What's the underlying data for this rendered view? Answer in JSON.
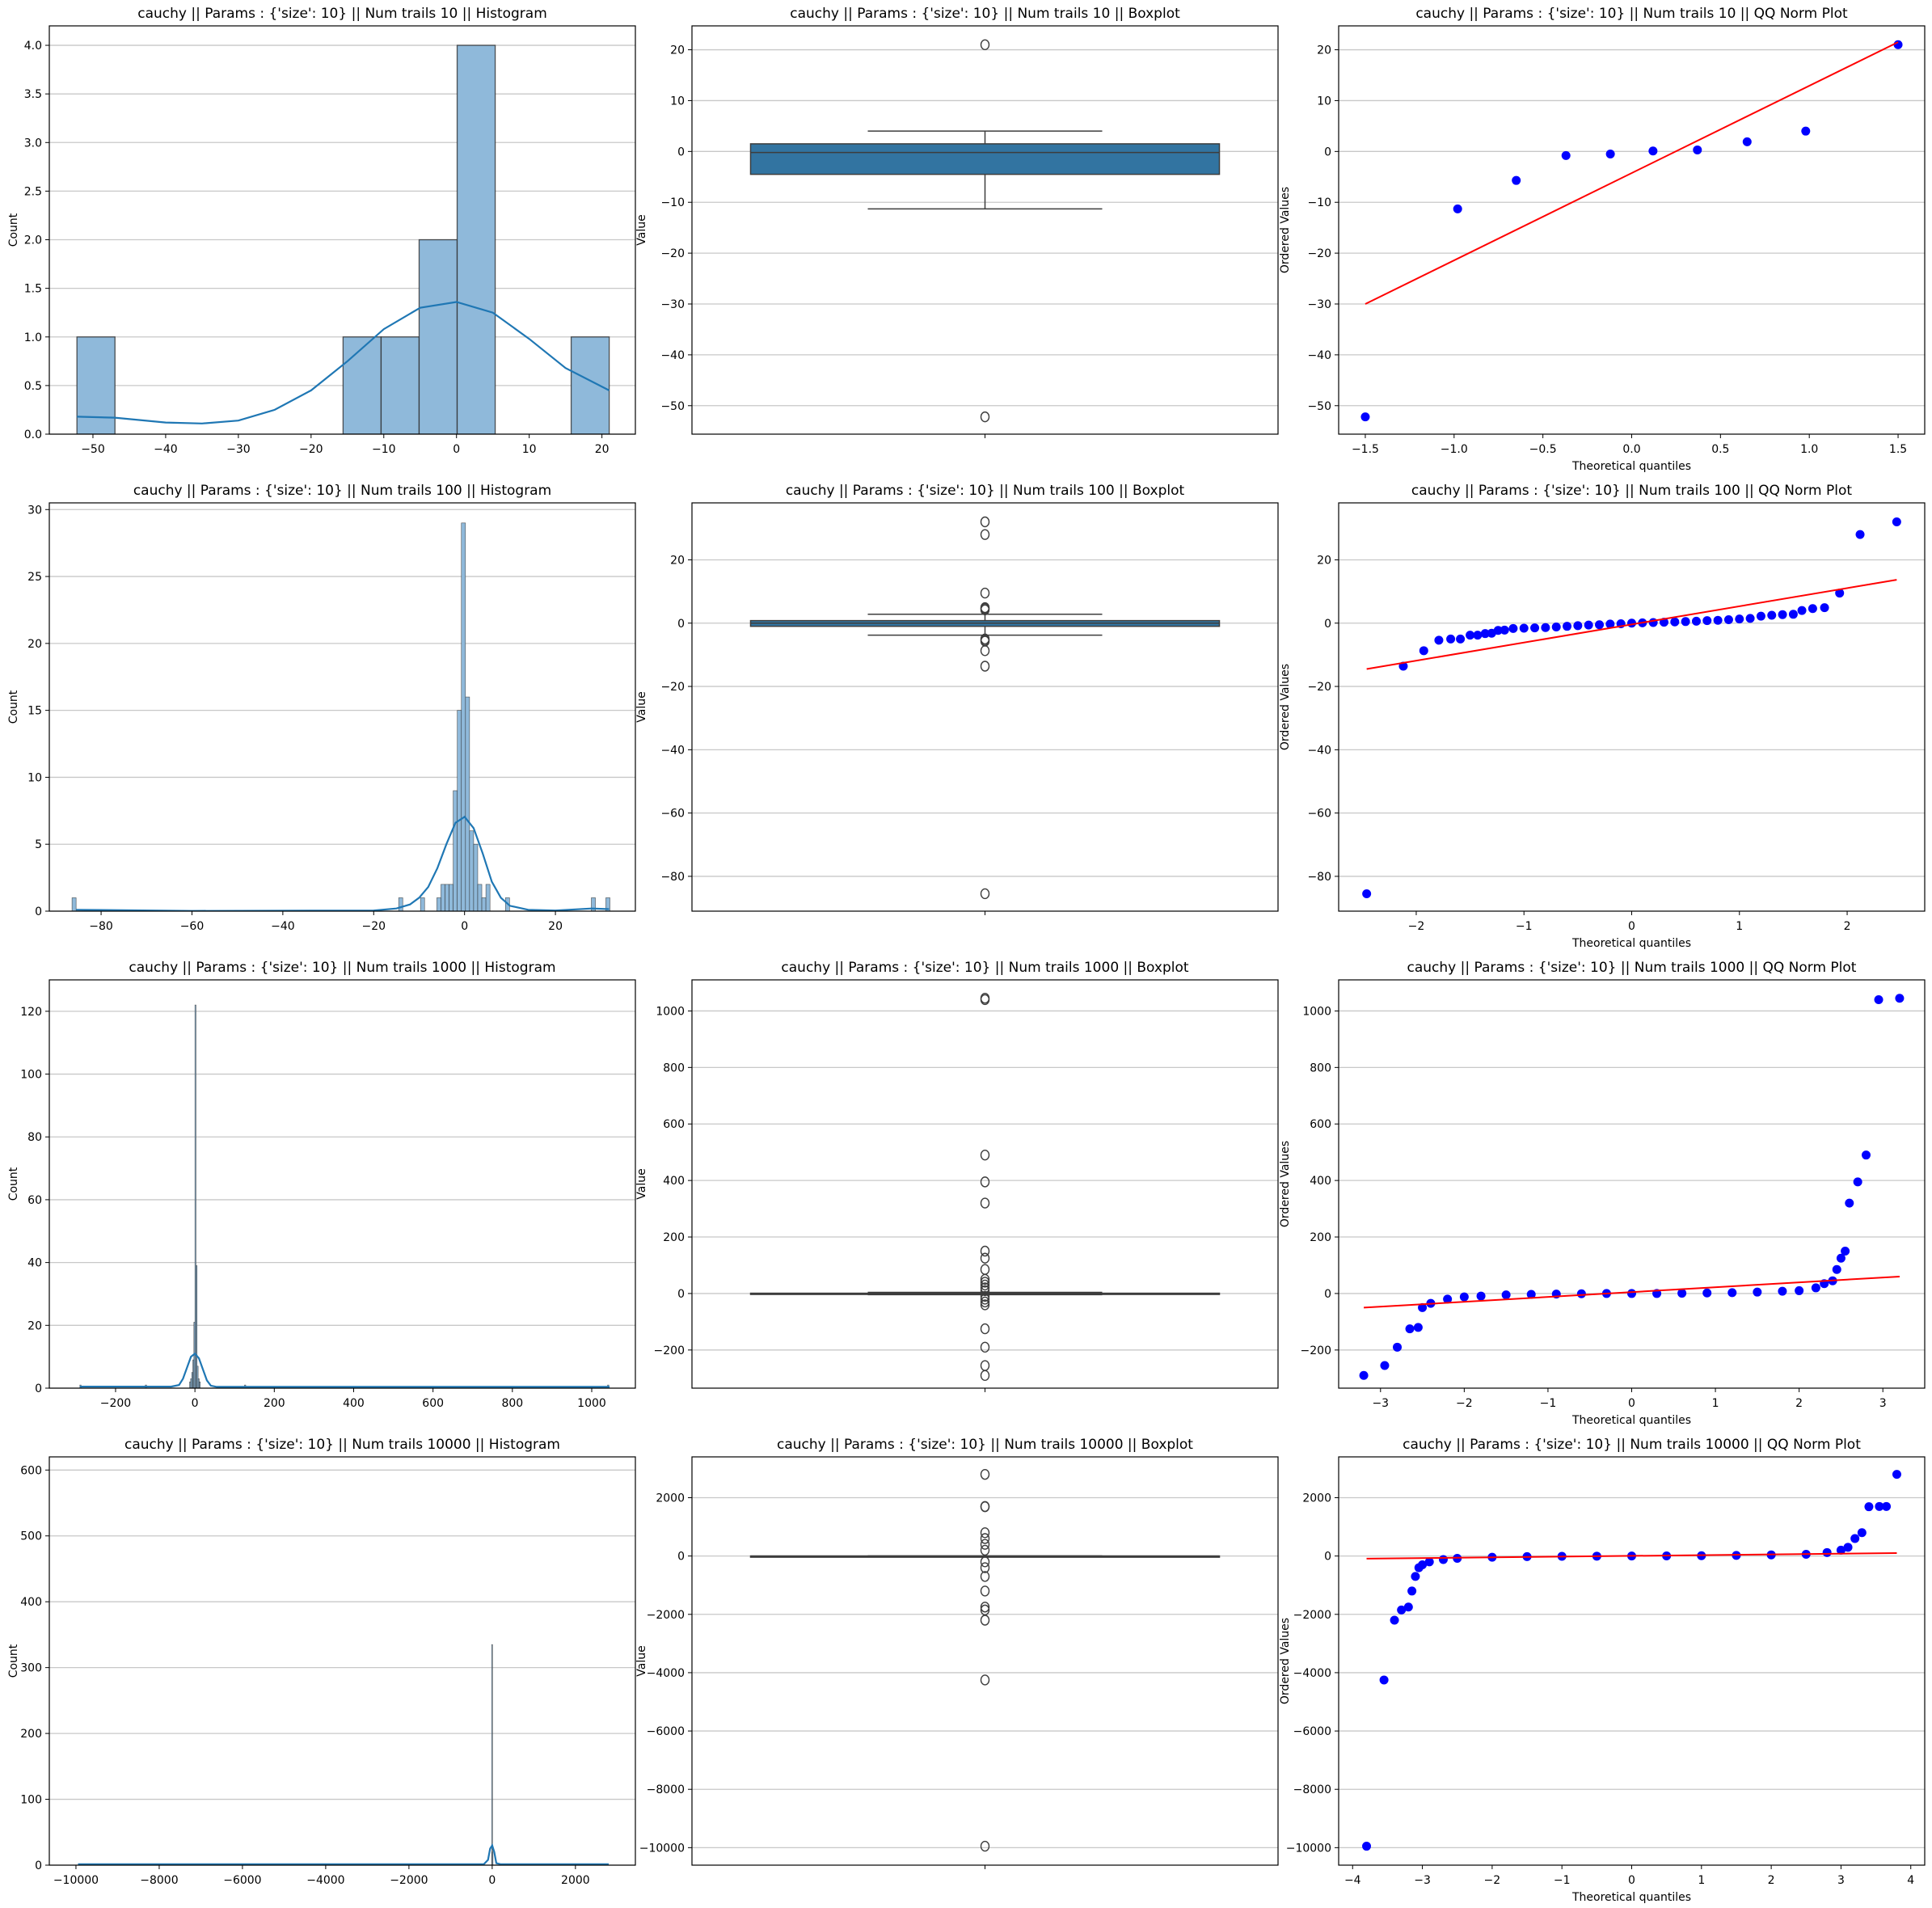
{
  "colors": {
    "hist_fill": "#8fb9da",
    "hist_edge": "#2b2b2b",
    "kde": "#1f77b4",
    "box_fill": "#3274a1",
    "box_edge": "#3d3d3d",
    "qq_point": "#0000ff",
    "qq_line": "#ff0000",
    "grid": "#c8c8c8"
  },
  "chart_data": [
    {
      "type": "histogram",
      "title": "cauchy || Params : {'size': 10} || Num trails 10 || Histogram",
      "xlabel": "",
      "ylabel": "Count",
      "xlim": [
        -56,
        24.6
      ],
      "ylim": [
        0,
        4.2
      ],
      "xticks": [
        "-50",
        "-40",
        "-30",
        "-20",
        "-10",
        "0",
        "10",
        "20"
      ],
      "yticks": [
        "0.0",
        "0.5",
        "1.0",
        "1.5",
        "2.0",
        "2.5",
        "3.0",
        "3.5",
        "4.0"
      ],
      "bins": [
        [
          -52.2,
          -46.97,
          1
        ],
        [
          -15.6,
          -10.37,
          1
        ],
        [
          -10.37,
          -5.14,
          1
        ],
        [
          -5.14,
          0.09,
          2
        ],
        [
          0.09,
          5.32,
          4
        ],
        [
          15.77,
          21.0,
          1
        ]
      ],
      "kde": [
        [
          -52.2,
          0.18
        ],
        [
          -47,
          0.17
        ],
        [
          -40,
          0.12
        ],
        [
          -35,
          0.11
        ],
        [
          -30,
          0.14
        ],
        [
          -25,
          0.25
        ],
        [
          -20,
          0.45
        ],
        [
          -15,
          0.75
        ],
        [
          -10,
          1.08
        ],
        [
          -5,
          1.3
        ],
        [
          0,
          1.36
        ],
        [
          5,
          1.25
        ],
        [
          10,
          0.98
        ],
        [
          15,
          0.68
        ],
        [
          21,
          0.45
        ]
      ]
    },
    {
      "type": "boxplot",
      "title": "cauchy || Params : {'size': 10} || Num trails 10 || Boxplot",
      "xlabel": "",
      "ylabel": "Value",
      "ylim": [
        -55.6,
        24.7
      ],
      "yticks": [
        "-50",
        "-40",
        "-30",
        "-20",
        "-10",
        "0",
        "10",
        "20"
      ],
      "q1": -4.5,
      "median": -0.2,
      "q3": 1.5,
      "whisker_low": -11.3,
      "whisker_high": 4.0,
      "outliers": [
        21.0,
        -52.2
      ]
    },
    {
      "type": "qq",
      "title": "cauchy || Params : {'size': 10} || Num trails 10 || QQ Norm Plot",
      "xlabel": "Theoretical quantiles",
      "ylabel": "Ordered Values",
      "xlim": [
        -1.65,
        1.65
      ],
      "ylim": [
        -55.6,
        24.7
      ],
      "xticks": [
        "-1.5",
        "-1.0",
        "-0.5",
        "0.0",
        "0.5",
        "1.0",
        "1.5"
      ],
      "yticks": [
        "-50",
        "-40",
        "-30",
        "-20",
        "-10",
        "0",
        "10",
        "20"
      ],
      "points": [
        [
          -1.5,
          -52.2
        ],
        [
          -0.98,
          -11.3
        ],
        [
          -0.65,
          -5.7
        ],
        [
          -0.37,
          -0.8
        ],
        [
          -0.12,
          -0.5
        ],
        [
          0.12,
          0.1
        ],
        [
          0.37,
          0.3
        ],
        [
          0.65,
          1.9
        ],
        [
          0.98,
          4.0
        ],
        [
          1.5,
          21.0
        ]
      ],
      "fit_line": [
        [
          -1.5,
          -30
        ],
        [
          1.5,
          21.5
        ]
      ]
    },
    {
      "type": "histogram",
      "title": "cauchy || Params : {'size': 10} || Num trails 100 || Histogram",
      "xlabel": "",
      "ylabel": "Count",
      "xlim": [
        -91.4,
        37.6
      ],
      "ylim": [
        0,
        30.5
      ],
      "xticks": [
        "-80",
        "-60",
        "-40",
        "-20",
        "0",
        "20"
      ],
      "yticks": [
        "0",
        "5",
        "10",
        "15",
        "20",
        "25",
        "30"
      ],
      "bins": [
        [
          -86.4,
          -85.5,
          1
        ],
        [
          -14.5,
          -13.6,
          1
        ],
        [
          -9.7,
          -8.8,
          1
        ],
        [
          -6.1,
          -5.2,
          1
        ],
        [
          -5.2,
          -4.3,
          2
        ],
        [
          -4.3,
          -3.4,
          2
        ],
        [
          -3.4,
          -2.5,
          2
        ],
        [
          -2.5,
          -1.6,
          9
        ],
        [
          -1.6,
          -0.7,
          15
        ],
        [
          -0.7,
          0.2,
          29
        ],
        [
          0.2,
          1.1,
          16
        ],
        [
          1.1,
          2.0,
          6
        ],
        [
          2.0,
          2.9,
          5
        ],
        [
          2.9,
          3.8,
          2
        ],
        [
          3.8,
          4.7,
          1
        ],
        [
          4.7,
          5.6,
          2
        ],
        [
          9.0,
          9.9,
          1
        ],
        [
          27.9,
          28.8,
          1
        ],
        [
          31.1,
          32.0,
          1
        ]
      ],
      "kde": [
        [
          -85.5,
          0.1
        ],
        [
          -60,
          0.02
        ],
        [
          -20,
          0.05
        ],
        [
          -15,
          0.2
        ],
        [
          -12,
          0.5
        ],
        [
          -10,
          1.0
        ],
        [
          -8,
          1.8
        ],
        [
          -6,
          3.2
        ],
        [
          -4,
          5.0
        ],
        [
          -2,
          6.6
        ],
        [
          0,
          7.05
        ],
        [
          2,
          6.2
        ],
        [
          4,
          4.3
        ],
        [
          6,
          2.2
        ],
        [
          8,
          1.0
        ],
        [
          10,
          0.4
        ],
        [
          14,
          0.1
        ],
        [
          20,
          0.05
        ],
        [
          28,
          0.2
        ],
        [
          31.8,
          0.15
        ]
      ]
    },
    {
      "type": "boxplot",
      "title": "cauchy || Params : {'size': 10} || Num trails 100 || Boxplot",
      "xlabel": "",
      "ylabel": "Value",
      "ylim": [
        -91,
        38
      ],
      "yticks": [
        "-80",
        "-60",
        "-40",
        "-20",
        "0",
        "20"
      ],
      "q1": -1.0,
      "median": 0.0,
      "q3": 0.8,
      "whisker_low": -3.8,
      "whisker_high": 2.8,
      "outliers": [
        32,
        28,
        9.5,
        4.9,
        4.6,
        4.2,
        -5.0,
        -5.4,
        -5.7,
        -8.7,
        -13.6,
        -85.5
      ]
    },
    {
      "type": "qq",
      "title": "cauchy || Params : {'size': 10} || Num trails 100 || QQ Norm Plot",
      "xlabel": "Theoretical quantiles",
      "ylabel": "Ordered Values",
      "xlim": [
        -2.72,
        2.72
      ],
      "ylim": [
        -91,
        38
      ],
      "xticks": [
        "-2",
        "-1",
        "0",
        "1",
        "2"
      ],
      "yticks": [
        "-80",
        "-60",
        "-40",
        "-20",
        "0",
        "20"
      ],
      "points": [
        [
          -2.46,
          -85.5
        ],
        [
          -2.12,
          -13.6
        ],
        [
          -1.93,
          -8.7
        ],
        [
          -1.79,
          -5.4
        ],
        [
          -1.68,
          -5.0
        ],
        [
          -1.59,
          -5.0
        ],
        [
          -1.5,
          -3.8
        ],
        [
          -1.43,
          -3.8
        ],
        [
          -1.36,
          -3.3
        ],
        [
          -1.3,
          -3.2
        ],
        [
          -1.24,
          -2.3
        ],
        [
          -1.18,
          -2.2
        ],
        [
          -1.1,
          -1.7
        ],
        [
          -1.0,
          -1.6
        ],
        [
          -0.9,
          -1.5
        ],
        [
          -0.8,
          -1.4
        ],
        [
          -0.7,
          -1.2
        ],
        [
          -0.6,
          -1.0
        ],
        [
          -0.5,
          -0.8
        ],
        [
          -0.4,
          -0.6
        ],
        [
          -0.3,
          -0.5
        ],
        [
          -0.2,
          -0.3
        ],
        [
          -0.1,
          -0.2
        ],
        [
          0.0,
          0.0
        ],
        [
          0.1,
          0.1
        ],
        [
          0.2,
          0.2
        ],
        [
          0.3,
          0.3
        ],
        [
          0.4,
          0.4
        ],
        [
          0.5,
          0.5
        ],
        [
          0.6,
          0.6
        ],
        [
          0.7,
          0.8
        ],
        [
          0.8,
          0.9
        ],
        [
          0.9,
          1.1
        ],
        [
          1.0,
          1.3
        ],
        [
          1.1,
          1.5
        ],
        [
          1.2,
          2.2
        ],
        [
          1.3,
          2.5
        ],
        [
          1.4,
          2.7
        ],
        [
          1.5,
          2.8
        ],
        [
          1.58,
          4.0
        ],
        [
          1.68,
          4.6
        ],
        [
          1.79,
          4.9
        ],
        [
          1.93,
          9.5
        ],
        [
          2.12,
          28
        ],
        [
          2.46,
          32
        ]
      ],
      "fit_line": [
        [
          -2.46,
          -14.5
        ],
        [
          2.46,
          13.7
        ]
      ]
    },
    {
      "type": "histogram",
      "title": "cauchy || Params : {'size': 10} || Num trails 1000 || Histogram",
      "xlabel": "",
      "ylabel": "Count",
      "xlim": [
        -367,
        1110
      ],
      "ylim": [
        0,
        130
      ],
      "xticks": [
        "-200",
        "0",
        "200",
        "400",
        "600",
        "800",
        "1000"
      ],
      "yticks": [
        "0",
        "20",
        "40",
        "60",
        "80",
        "100",
        "120"
      ],
      "bins": [
        [
          -290,
          -287,
          1
        ],
        [
          -125,
          -122,
          1
        ],
        [
          -13.5,
          -10.8,
          2
        ],
        [
          -10.8,
          -8.1,
          3
        ],
        [
          -8.1,
          -5.4,
          5
        ],
        [
          -5.4,
          -2.7,
          9
        ],
        [
          -2.7,
          0,
          21
        ],
        [
          0,
          2.7,
          122
        ],
        [
          2.7,
          5.4,
          39
        ],
        [
          5.4,
          8.1,
          7
        ],
        [
          8.1,
          10.8,
          3
        ],
        [
          10.8,
          13.5,
          2
        ],
        [
          125,
          128,
          1
        ],
        [
          1040,
          1043,
          1
        ]
      ],
      "kde": [
        [
          -290,
          0.5
        ],
        [
          -60,
          0.5
        ],
        [
          -40,
          1
        ],
        [
          -30,
          3
        ],
        [
          -20,
          6.5
        ],
        [
          -10,
          10
        ],
        [
          0,
          11
        ],
        [
          10,
          9.5
        ],
        [
          20,
          6
        ],
        [
          30,
          2.5
        ],
        [
          40,
          0.8
        ],
        [
          55,
          0.4
        ],
        [
          1045,
          0.4
        ]
      ]
    },
    {
      "type": "boxplot",
      "title": "cauchy || Params : {'size': 10} || Num trails 1000 || Boxplot",
      "xlabel": "",
      "ylabel": "Value",
      "ylim": [
        -335,
        1110
      ],
      "yticks": [
        "-200",
        "0",
        "200",
        "400",
        "600",
        "800",
        "1000"
      ],
      "q1": -1,
      "median": 0,
      "q3": 1,
      "whisker_low": -4,
      "whisker_high": 4,
      "outliers": [
        1045,
        1040,
        490,
        395,
        320,
        150,
        125,
        85,
        50,
        40,
        30,
        20,
        10,
        -10,
        -20,
        -30,
        -40,
        -125,
        -190,
        -255,
        -290
      ]
    },
    {
      "type": "qq",
      "title": "cauchy || Params : {'size': 10} || Num trails 1000 || QQ Norm Plot",
      "xlabel": "Theoretical quantiles",
      "ylabel": "Ordered Values",
      "xlim": [
        -3.5,
        3.5
      ],
      "ylim": [
        -335,
        1110
      ],
      "xticks": [
        "-3",
        "-2",
        "-1",
        "0",
        "1",
        "2",
        "3"
      ],
      "yticks": [
        "-200",
        "0",
        "200",
        "400",
        "600",
        "800",
        "1000"
      ],
      "points": [
        [
          -3.2,
          -290
        ],
        [
          -2.95,
          -255
        ],
        [
          -2.8,
          -190
        ],
        [
          -2.65,
          -125
        ],
        [
          -2.55,
          -120
        ],
        [
          -2.5,
          -50
        ],
        [
          -2.4,
          -35
        ],
        [
          -2.2,
          -20
        ],
        [
          -2.0,
          -12
        ],
        [
          -1.8,
          -9
        ],
        [
          -1.5,
          -5
        ],
        [
          -1.2,
          -3
        ],
        [
          -0.9,
          -2
        ],
        [
          -0.6,
          -1
        ],
        [
          -0.3,
          0
        ],
        [
          0,
          0
        ],
        [
          0.3,
          0
        ],
        [
          0.6,
          1
        ],
        [
          0.9,
          2
        ],
        [
          1.2,
          3
        ],
        [
          1.5,
          5
        ],
        [
          1.8,
          8
        ],
        [
          2.0,
          10
        ],
        [
          2.2,
          20
        ],
        [
          2.3,
          35
        ],
        [
          2.4,
          45
        ],
        [
          2.45,
          85
        ],
        [
          2.5,
          125
        ],
        [
          2.55,
          150
        ],
        [
          2.6,
          320
        ],
        [
          2.7,
          395
        ],
        [
          2.8,
          490
        ],
        [
          2.95,
          1040
        ],
        [
          3.2,
          1045
        ]
      ],
      "fit_line": [
        [
          -3.2,
          -50
        ],
        [
          3.2,
          60
        ]
      ]
    },
    {
      "type": "histogram",
      "title": "cauchy || Params : {'size': 10} || Num trails 10000 || Histogram",
      "xlabel": "",
      "ylabel": "Count",
      "xlim": [
        -10640,
        3440
      ],
      "ylim": [
        0,
        620
      ],
      "xticks": [
        "-10000",
        "-8000",
        "-6000",
        "-4000",
        "-2000",
        "0",
        "2000"
      ],
      "yticks": [
        "0",
        "100",
        "200",
        "300",
        "400",
        "500",
        "600"
      ],
      "bins": [
        [
          -12,
          0,
          335
        ],
        [
          0,
          12,
          20
        ]
      ],
      "kde": [
        [
          -9950,
          1.5
        ],
        [
          -200,
          1.5
        ],
        [
          -100,
          8
        ],
        [
          -50,
          25
        ],
        [
          0,
          30
        ],
        [
          50,
          20
        ],
        [
          100,
          3
        ],
        [
          200,
          1.5
        ],
        [
          2800,
          1.5
        ]
      ]
    },
    {
      "type": "boxplot",
      "title": "cauchy || Params : {'size': 10} || Num trails 10000 || Boxplot",
      "xlabel": "",
      "ylabel": "Value",
      "ylim": [
        -10600,
        3400
      ],
      "yticks": [
        "-10000",
        "-8000",
        "-6000",
        "-4000",
        "-2000",
        "0",
        "2000"
      ],
      "q1": -1,
      "median": 0,
      "q3": 1,
      "whisker_low": -4,
      "whisker_high": 4,
      "outliers": [
        2800,
        1700,
        1690,
        800,
        600,
        400,
        200,
        -200,
        -400,
        -700,
        -1200,
        -1750,
        -1850,
        -2200,
        -4250,
        -9950
      ]
    },
    {
      "type": "qq",
      "title": "cauchy || Params : {'size': 10} || Num trails 10000 || QQ Norm Plot",
      "xlabel": "Theoretical quantiles",
      "ylabel": "Ordered Values",
      "xlim": [
        -4.2,
        4.2
      ],
      "ylim": [
        -10600,
        3400
      ],
      "xticks": [
        "-4",
        "-3",
        "-2",
        "-1",
        "0",
        "1",
        "2",
        "3",
        "4"
      ],
      "yticks": [
        "-10000",
        "-8000",
        "-6000",
        "-4000",
        "-2000",
        "0",
        "2000"
      ],
      "points": [
        [
          -3.8,
          -9950
        ],
        [
          -3.55,
          -4250
        ],
        [
          -3.4,
          -2200
        ],
        [
          -3.3,
          -1850
        ],
        [
          -3.2,
          -1750
        ],
        [
          -3.15,
          -1200
        ],
        [
          -3.1,
          -700
        ],
        [
          -3.05,
          -400
        ],
        [
          -3.0,
          -300
        ],
        [
          -2.9,
          -200
        ],
        [
          -2.7,
          -120
        ],
        [
          -2.5,
          -80
        ],
        [
          -2.0,
          -40
        ],
        [
          -1.5,
          -20
        ],
        [
          -1.0,
          -10
        ],
        [
          -0.5,
          -5
        ],
        [
          0,
          0
        ],
        [
          0.5,
          5
        ],
        [
          1.0,
          10
        ],
        [
          1.5,
          20
        ],
        [
          2.0,
          40
        ],
        [
          2.5,
          60
        ],
        [
          2.8,
          120
        ],
        [
          3.0,
          200
        ],
        [
          3.1,
          300
        ],
        [
          3.2,
          600
        ],
        [
          3.3,
          800
        ],
        [
          3.4,
          1690
        ],
        [
          3.55,
          1700
        ],
        [
          3.65,
          1700
        ],
        [
          3.8,
          2800
        ]
      ],
      "fit_line": [
        [
          -3.8,
          -90
        ],
        [
          3.8,
          100
        ]
      ]
    }
  ]
}
